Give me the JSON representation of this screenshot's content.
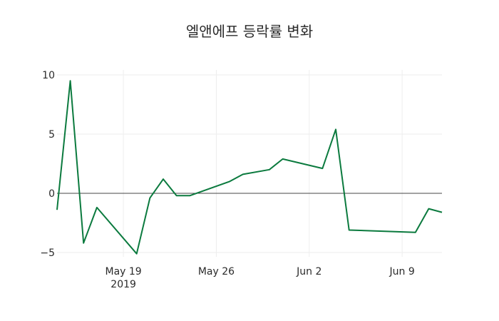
{
  "chart_data": {
    "type": "line",
    "title": "엘앤에프 등락률 변화",
    "xlabel": "",
    "ylabel": "",
    "x": [
      "2019-05-14",
      "2019-05-15",
      "2019-05-16",
      "2019-05-17",
      "2019-05-20",
      "2019-05-21",
      "2019-05-22",
      "2019-05-23",
      "2019-05-24",
      "2019-05-27",
      "2019-05-28",
      "2019-05-30",
      "2019-05-31",
      "2019-06-03",
      "2019-06-04",
      "2019-06-05",
      "2019-06-10",
      "2019-06-11",
      "2019-06-12"
    ],
    "series": [
      {
        "name": "등락률",
        "color": "#0b7a3e",
        "values": [
          -1.4,
          9.5,
          -4.2,
          -1.2,
          -5.1,
          -0.4,
          1.2,
          -0.2,
          -0.2,
          1.0,
          1.6,
          2.0,
          2.9,
          2.1,
          5.4,
          -3.1,
          -3.3,
          -1.3,
          -1.6
        ]
      }
    ],
    "x_ticks": [
      {
        "label": "May 19",
        "sublabel": "2019",
        "date": "2019-05-19"
      },
      {
        "label": "May 26",
        "date": "2019-05-26"
      },
      {
        "label": "Jun 2",
        "date": "2019-06-02"
      },
      {
        "label": "Jun 9",
        "date": "2019-06-09"
      }
    ],
    "y_ticks": [
      10,
      5,
      0,
      -5
    ],
    "y_tick_labels": [
      "10",
      "5",
      "0",
      "−5"
    ],
    "ylim": [
      -5.5,
      10.3
    ],
    "xlim": [
      "2019-05-14",
      "2019-06-12"
    ],
    "grid": true,
    "zero_line": true,
    "legend": "none"
  }
}
